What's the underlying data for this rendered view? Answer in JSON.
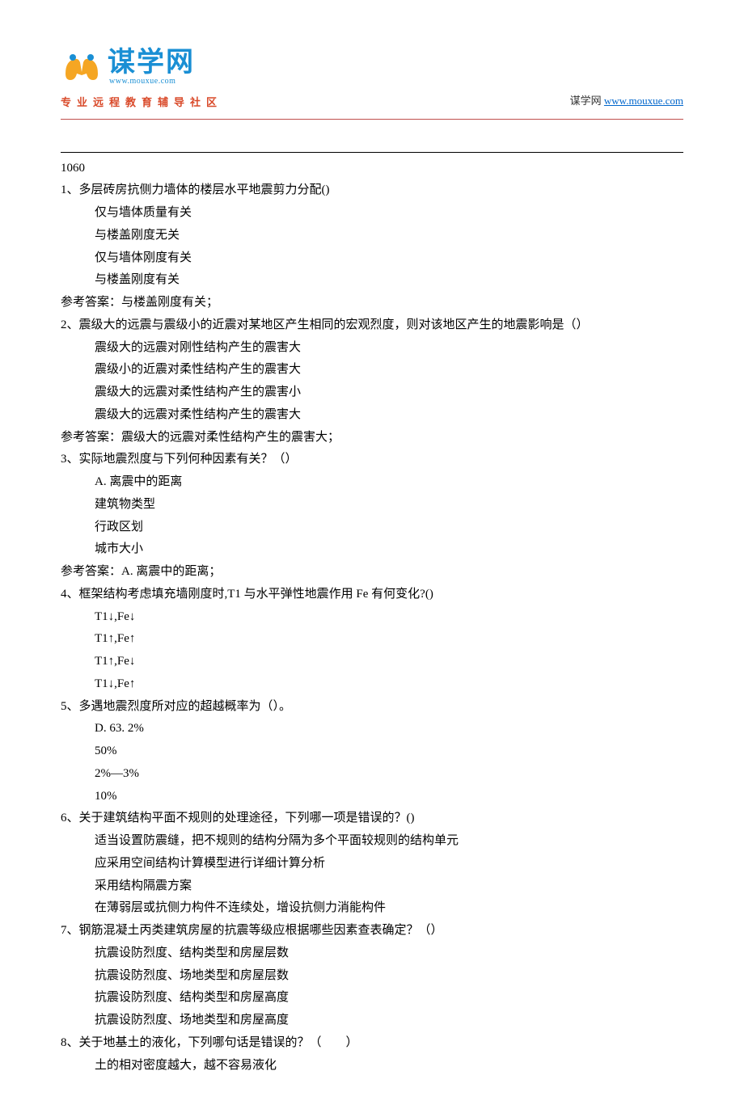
{
  "header": {
    "logo_cn": "谋学网",
    "logo_en": "www.mouxue.com",
    "tagline": "专业远程教育辅导社区",
    "right_prefix": "谋学网 ",
    "right_link": "www.mouxue.com"
  },
  "doc_id": "1060",
  "questions": [
    {
      "stem": "1、多层砖房抗侧力墙体的楼层水平地震剪力分配()",
      "options": [
        "仅与墙体质量有关",
        "与楼盖刚度无关",
        "仅与墙体刚度有关",
        "与楼盖刚度有关"
      ],
      "answer": "参考答案：与楼盖刚度有关；"
    },
    {
      "stem": "2、震级大的远震与震级小的近震对某地区产生相同的宏观烈度，则对该地区产生的地震影响是（）",
      "options": [
        "震级大的远震对刚性结构产生的震害大",
        "震级小的近震对柔性结构产生的震害大",
        "震级大的远震对柔性结构产生的震害小",
        "震级大的远震对柔性结构产生的震害大"
      ],
      "answer": "参考答案：震级大的远震对柔性结构产生的震害大；"
    },
    {
      "stem": "3、实际地震烈度与下列何种因素有关？（）",
      "options": [
        "A. 离震中的距离",
        "建筑物类型",
        "行政区划",
        "城市大小"
      ],
      "answer": "参考答案：A. 离震中的距离；"
    },
    {
      "stem": "4、框架结构考虑填充墙刚度时,T1 与水平弹性地震作用 Fe 有何变化?()",
      "options": [
        "T1↓,Fe↓",
        "T1↑,Fe↑",
        "T1↑,Fe↓",
        "T1↓,Fe↑"
      ],
      "answer": null
    },
    {
      "stem": "5、多遇地震烈度所对应的超越概率为（）。",
      "options": [
        "D. 63. 2%",
        "50%",
        "2%—3%",
        "10%"
      ],
      "answer": null
    },
    {
      "stem": "6、关于建筑结构平面不规则的处理途径，下列哪一项是错误的？()",
      "options": [
        "适当设置防震缝，把不规则的结构分隔为多个平面较规则的结构单元",
        "应采用空间结构计算模型进行详细计算分析",
        "采用结构隔震方案",
        "在薄弱层或抗侧力构件不连续处，增设抗侧力消能构件"
      ],
      "answer": null
    },
    {
      "stem": "7、钢筋混凝土丙类建筑房屋的抗震等级应根据哪些因素查表确定？（）",
      "options": [
        "抗震设防烈度、结构类型和房屋层数",
        "抗震设防烈度、场地类型和房屋层数",
        "抗震设防烈度、结构类型和房屋高度",
        "抗震设防烈度、场地类型和房屋高度"
      ],
      "answer": null
    },
    {
      "stem": "8、关于地基土的液化，下列哪句话是错误的？（　　）",
      "options": [
        "土的相对密度越大，越不容易液化"
      ],
      "answer": null
    }
  ]
}
